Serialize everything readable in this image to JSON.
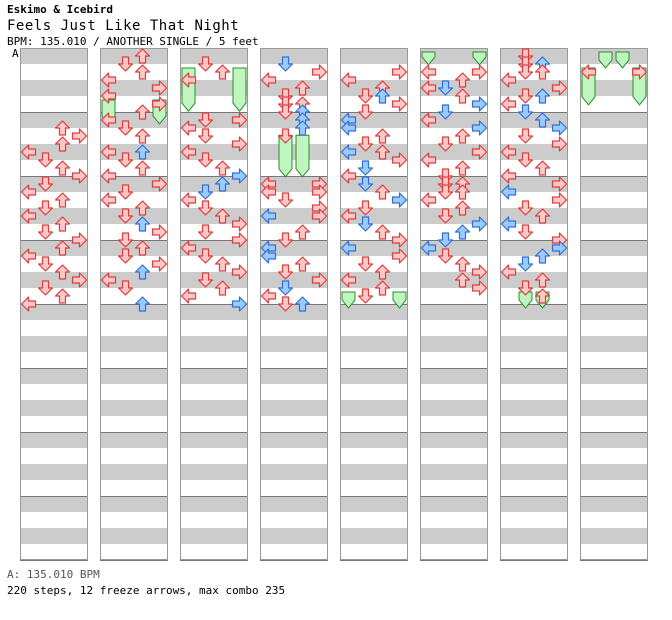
{
  "header": {
    "artist": "Eskimo & Icebird",
    "title": "Feels Just Like That Night",
    "meta": "BPM: 135.010 / ANOTHER SINGLE / 5 feet",
    "bpm_marker": "A"
  },
  "footer": {
    "bpm": "A: 135.010 BPM",
    "stats": "220 steps, 12 freeze arrows, max combo 235"
  },
  "colors": {
    "stripe": "#cccccc",
    "background": "#ffffff",
    "measure_line": "#777777",
    "arrow_red_fill": "#ffc8c8",
    "arrow_red_stroke": "#e03c3c",
    "arrow_blue_fill": "#9ecbff",
    "arrow_blue_stroke": "#2f6fd8",
    "freeze_fill": "#bff5bf",
    "freeze_stroke": "#2b8c2b"
  },
  "chart": {
    "columns": 8,
    "measures_per_column": 8,
    "lanes": [
      "left",
      "down",
      "up",
      "right"
    ],
    "notes": [
      [
        [
          0,
          4.5,
          2,
          "r"
        ],
        [
          0,
          5.0,
          3,
          "r"
        ],
        [
          0,
          5.5,
          2,
          "r"
        ],
        [
          0,
          6.0,
          0,
          "r"
        ],
        [
          0,
          6.5,
          1,
          "r"
        ],
        [
          0,
          7.0,
          2,
          "r"
        ],
        [
          0,
          7.5,
          3,
          "r"
        ],
        [
          0,
          8.0,
          1,
          "r"
        ],
        [
          0,
          8.5,
          0,
          "r"
        ],
        [
          0,
          9.0,
          2,
          "r"
        ],
        [
          0,
          9.5,
          1,
          "r"
        ],
        [
          0,
          10.0,
          0,
          "r"
        ],
        [
          0,
          10.5,
          2,
          "r"
        ],
        [
          0,
          11.0,
          1,
          "r"
        ],
        [
          0,
          11.5,
          3,
          "r"
        ],
        [
          0,
          12.0,
          2,
          "r"
        ],
        [
          0,
          12.5,
          0,
          "r"
        ],
        [
          0,
          13.0,
          1,
          "r"
        ],
        [
          0,
          13.5,
          2,
          "r"
        ],
        [
          0,
          14.0,
          3,
          "r"
        ],
        [
          0,
          14.5,
          1,
          "r"
        ],
        [
          0,
          15.0,
          2,
          "r"
        ],
        [
          0,
          15.5,
          0,
          "r"
        ]
      ],
      [
        [
          1,
          0.0,
          2,
          "r"
        ],
        [
          1,
          0.5,
          1,
          "r"
        ],
        [
          1,
          1.0,
          2,
          "r"
        ],
        [
          1,
          1.5,
          0,
          "r"
        ],
        [
          1,
          2.0,
          3,
          "r"
        ],
        [
          1,
          2.5,
          0,
          "r"
        ],
        [
          1,
          3.0,
          3,
          "r"
        ],
        [
          1,
          3.5,
          2,
          "r"
        ],
        [
          1,
          4.0,
          0,
          "r"
        ],
        [
          1,
          4.5,
          1,
          "r"
        ],
        [
          1,
          5.0,
          2,
          "r"
        ],
        [
          1,
          6.0,
          0,
          "r"
        ],
        [
          1,
          6.0,
          2,
          "b"
        ],
        [
          1,
          6.5,
          1,
          "r"
        ],
        [
          1,
          7.0,
          2,
          "r"
        ],
        [
          1,
          7.5,
          0,
          "r"
        ],
        [
          1,
          8.0,
          3,
          "r"
        ],
        [
          1,
          8.5,
          1,
          "r"
        ],
        [
          1,
          9.0,
          0,
          "r"
        ],
        [
          1,
          9.5,
          2,
          "r"
        ],
        [
          1,
          10.0,
          1,
          "r"
        ],
        [
          1,
          10.5,
          2,
          "b"
        ],
        [
          1,
          11.0,
          3,
          "r"
        ],
        [
          1,
          11.5,
          1,
          "r"
        ],
        [
          1,
          12.0,
          2,
          "r"
        ],
        [
          1,
          12.5,
          1,
          "r"
        ],
        [
          1,
          13.0,
          3,
          "r"
        ],
        [
          1,
          13.5,
          2,
          "b"
        ],
        [
          1,
          14.0,
          0,
          "r"
        ],
        [
          1,
          14.5,
          1,
          "r"
        ],
        [
          1,
          15.5,
          2,
          "b"
        ]
      ],
      [
        [
          2,
          0.5,
          1,
          "r"
        ],
        [
          2,
          1.0,
          2,
          "r"
        ],
        [
          2,
          1.5,
          0,
          "r"
        ],
        [
          2,
          4.0,
          1,
          "r"
        ],
        [
          2,
          4.0,
          3,
          "r"
        ],
        [
          2,
          4.5,
          0,
          "r"
        ],
        [
          2,
          5.0,
          1,
          "r"
        ],
        [
          2,
          5.5,
          3,
          "r"
        ],
        [
          2,
          6.0,
          0,
          "r"
        ],
        [
          2,
          6.5,
          1,
          "r"
        ],
        [
          2,
          7.0,
          2,
          "r"
        ],
        [
          2,
          7.5,
          3,
          "b"
        ],
        [
          2,
          8.0,
          2,
          "b"
        ],
        [
          2,
          8.5,
          1,
          "b"
        ],
        [
          2,
          9.0,
          0,
          "r"
        ],
        [
          2,
          9.5,
          1,
          "r"
        ],
        [
          2,
          10.0,
          2,
          "r"
        ],
        [
          2,
          10.5,
          3,
          "r"
        ],
        [
          2,
          11.0,
          1,
          "r"
        ],
        [
          2,
          11.5,
          3,
          "r"
        ],
        [
          2,
          12.0,
          0,
          "r"
        ],
        [
          2,
          12.5,
          1,
          "r"
        ],
        [
          2,
          13.0,
          2,
          "r"
        ],
        [
          2,
          13.5,
          3,
          "r"
        ],
        [
          2,
          14.0,
          1,
          "r"
        ],
        [
          2,
          14.5,
          2,
          "r"
        ],
        [
          2,
          15.0,
          0,
          "r"
        ],
        [
          2,
          15.5,
          3,
          "b"
        ]
      ],
      [
        [
          3,
          0.5,
          1,
          "b"
        ],
        [
          3,
          1.0,
          3,
          "r"
        ],
        [
          3,
          1.5,
          0,
          "r"
        ],
        [
          3,
          2.0,
          2,
          "r"
        ],
        [
          3,
          2.5,
          1,
          "r"
        ],
        [
          3,
          3.0,
          2,
          "r"
        ],
        [
          3,
          3.0,
          1,
          "r"
        ],
        [
          3,
          3.5,
          1,
          "r"
        ],
        [
          3,
          3.5,
          2,
          "b"
        ],
        [
          3,
          4.0,
          2,
          "b"
        ],
        [
          3,
          4.5,
          2,
          "b"
        ],
        [
          3,
          5.0,
          1,
          "r"
        ],
        [
          3,
          8.0,
          0,
          "r"
        ],
        [
          3,
          8.0,
          3,
          "r"
        ],
        [
          3,
          8.5,
          0,
          "r"
        ],
        [
          3,
          8.5,
          3,
          "r"
        ],
        [
          3,
          9.0,
          1,
          "r"
        ],
        [
          3,
          9.5,
          3,
          "r"
        ],
        [
          3,
          10.0,
          0,
          "b"
        ],
        [
          3,
          10.0,
          3,
          "r"
        ],
        [
          3,
          11.0,
          2,
          "r"
        ],
        [
          3,
          11.5,
          1,
          "r"
        ],
        [
          3,
          12.0,
          0,
          "b"
        ],
        [
          3,
          12.5,
          0,
          "b"
        ],
        [
          3,
          13.0,
          2,
          "r"
        ],
        [
          3,
          13.5,
          1,
          "r"
        ],
        [
          3,
          14.0,
          3,
          "r"
        ],
        [
          3,
          14.5,
          1,
          "b"
        ],
        [
          3,
          15.0,
          0,
          "r"
        ],
        [
          3,
          15.5,
          2,
          "b"
        ],
        [
          3,
          15.5,
          1,
          "r"
        ]
      ],
      [
        [
          4,
          1.0,
          3,
          "r"
        ],
        [
          4,
          1.5,
          0,
          "r"
        ],
        [
          4,
          2.0,
          2,
          "r"
        ],
        [
          4,
          2.5,
          1,
          "r"
        ],
        [
          4,
          2.5,
          2,
          "b"
        ],
        [
          4,
          3.0,
          3,
          "r"
        ],
        [
          4,
          3.5,
          1,
          "r"
        ],
        [
          4,
          4.0,
          0,
          "b"
        ],
        [
          4,
          4.5,
          0,
          "b"
        ],
        [
          4,
          5.0,
          2,
          "r"
        ],
        [
          4,
          5.5,
          1,
          "r"
        ],
        [
          4,
          6.0,
          0,
          "b"
        ],
        [
          4,
          6.0,
          2,
          "r"
        ],
        [
          4,
          6.5,
          3,
          "r"
        ],
        [
          4,
          7.0,
          1,
          "b"
        ],
        [
          4,
          7.5,
          0,
          "r"
        ],
        [
          4,
          8.0,
          1,
          "b"
        ],
        [
          4,
          8.5,
          2,
          "r"
        ],
        [
          4,
          9.0,
          3,
          "b"
        ],
        [
          4,
          9.5,
          1,
          "r"
        ],
        [
          4,
          10.0,
          0,
          "r"
        ],
        [
          4,
          10.5,
          1,
          "b"
        ],
        [
          4,
          11.0,
          2,
          "r"
        ],
        [
          4,
          11.5,
          3,
          "r"
        ],
        [
          4,
          12.0,
          0,
          "b"
        ],
        [
          4,
          12.5,
          3,
          "r"
        ],
        [
          4,
          13.0,
          1,
          "r"
        ],
        [
          4,
          13.5,
          2,
          "r"
        ],
        [
          4,
          14.0,
          0,
          "r"
        ],
        [
          4,
          14.5,
          2,
          "r"
        ],
        [
          4,
          15.0,
          1,
          "r"
        ]
      ],
      [
        [
          5,
          1.0,
          0,
          "r"
        ],
        [
          5,
          1.0,
          3,
          "r"
        ],
        [
          5,
          1.5,
          2,
          "r"
        ],
        [
          5,
          2.0,
          1,
          "b"
        ],
        [
          5,
          2.0,
          0,
          "r"
        ],
        [
          5,
          2.5,
          2,
          "r"
        ],
        [
          5,
          3.0,
          3,
          "b"
        ],
        [
          5,
          3.5,
          1,
          "b"
        ],
        [
          5,
          4.0,
          0,
          "r"
        ],
        [
          5,
          4.5,
          3,
          "b"
        ],
        [
          5,
          5.0,
          2,
          "r"
        ],
        [
          5,
          5.5,
          1,
          "r"
        ],
        [
          5,
          6.0,
          3,
          "r"
        ],
        [
          5,
          6.5,
          0,
          "r"
        ],
        [
          5,
          7.0,
          2,
          "r"
        ],
        [
          5,
          7.5,
          1,
          "r"
        ],
        [
          5,
          8.0,
          2,
          "r"
        ],
        [
          5,
          8.0,
          1,
          "r"
        ],
        [
          5,
          8.5,
          1,
          "r"
        ],
        [
          5,
          8.5,
          2,
          "r"
        ],
        [
          5,
          9.0,
          0,
          "r"
        ],
        [
          5,
          9.5,
          2,
          "r"
        ],
        [
          5,
          10.0,
          1,
          "r"
        ],
        [
          5,
          10.5,
          3,
          "b"
        ],
        [
          5,
          11.0,
          2,
          "b"
        ],
        [
          5,
          11.5,
          1,
          "b"
        ],
        [
          5,
          12.0,
          0,
          "b"
        ],
        [
          5,
          12.5,
          1,
          "r"
        ],
        [
          5,
          13.0,
          2,
          "r"
        ],
        [
          5,
          13.5,
          3,
          "r"
        ],
        [
          5,
          14.0,
          2,
          "r"
        ],
        [
          5,
          14.5,
          3,
          "r"
        ]
      ],
      [
        [
          6,
          0.0,
          1,
          "r"
        ],
        [
          6,
          0.5,
          1,
          "r"
        ],
        [
          6,
          0.5,
          2,
          "b"
        ],
        [
          6,
          1.0,
          1,
          "r"
        ],
        [
          6,
          1.0,
          2,
          "r"
        ],
        [
          6,
          1.5,
          0,
          "r"
        ],
        [
          6,
          2.0,
          3,
          "r"
        ],
        [
          6,
          2.5,
          2,
          "b"
        ],
        [
          6,
          2.5,
          1,
          "r"
        ],
        [
          6,
          3.0,
          0,
          "r"
        ],
        [
          6,
          3.5,
          1,
          "b"
        ],
        [
          6,
          4.0,
          2,
          "b"
        ],
        [
          6,
          4.5,
          3,
          "b"
        ],
        [
          6,
          5.0,
          1,
          "r"
        ],
        [
          6,
          5.5,
          3,
          "r"
        ],
        [
          6,
          6.0,
          0,
          "r"
        ],
        [
          6,
          6.5,
          1,
          "r"
        ],
        [
          6,
          7.0,
          2,
          "r"
        ],
        [
          6,
          7.5,
          0,
          "r"
        ],
        [
          6,
          8.0,
          3,
          "r"
        ],
        [
          6,
          8.5,
          0,
          "b"
        ],
        [
          6,
          9.0,
          3,
          "r"
        ],
        [
          6,
          9.5,
          1,
          "r"
        ],
        [
          6,
          10.0,
          2,
          "r"
        ],
        [
          6,
          10.5,
          0,
          "b"
        ],
        [
          6,
          11.0,
          1,
          "r"
        ],
        [
          6,
          11.5,
          3,
          "r"
        ],
        [
          6,
          12.0,
          3,
          "b"
        ],
        [
          6,
          12.5,
          2,
          "b"
        ],
        [
          6,
          13.0,
          1,
          "b"
        ],
        [
          6,
          13.5,
          0,
          "r"
        ],
        [
          6,
          14.0,
          2,
          "r"
        ],
        [
          6,
          14.5,
          1,
          "r"
        ],
        [
          6,
          15.0,
          2,
          "r"
        ]
      ],
      [
        [
          7,
          1.0,
          0,
          "r"
        ],
        [
          7,
          1.0,
          3,
          "r"
        ]
      ]
    ],
    "freezes": [
      [
        1,
        3.0,
        4.5,
        0
      ],
      [
        1,
        3.0,
        4.5,
        3
      ],
      [
        2,
        1.0,
        3.7,
        0
      ],
      [
        2,
        1.0,
        3.7,
        3
      ],
      [
        3,
        5.2,
        7.8,
        1
      ],
      [
        3,
        5.2,
        7.8,
        2
      ],
      [
        4,
        15.0,
        16.0,
        0
      ],
      [
        4,
        15.0,
        16.0,
        3
      ],
      [
        5,
        0.0,
        0.8,
        0
      ],
      [
        5,
        0.0,
        0.8,
        3
      ],
      [
        6,
        15.0,
        16.0,
        1
      ],
      [
        6,
        15.0,
        16.0,
        2
      ],
      [
        7,
        0.0,
        1.0,
        1
      ],
      [
        7,
        0.0,
        1.0,
        2
      ],
      [
        7,
        1.0,
        3.3,
        0
      ],
      [
        7,
        1.0,
        3.3,
        3
      ]
    ]
  }
}
